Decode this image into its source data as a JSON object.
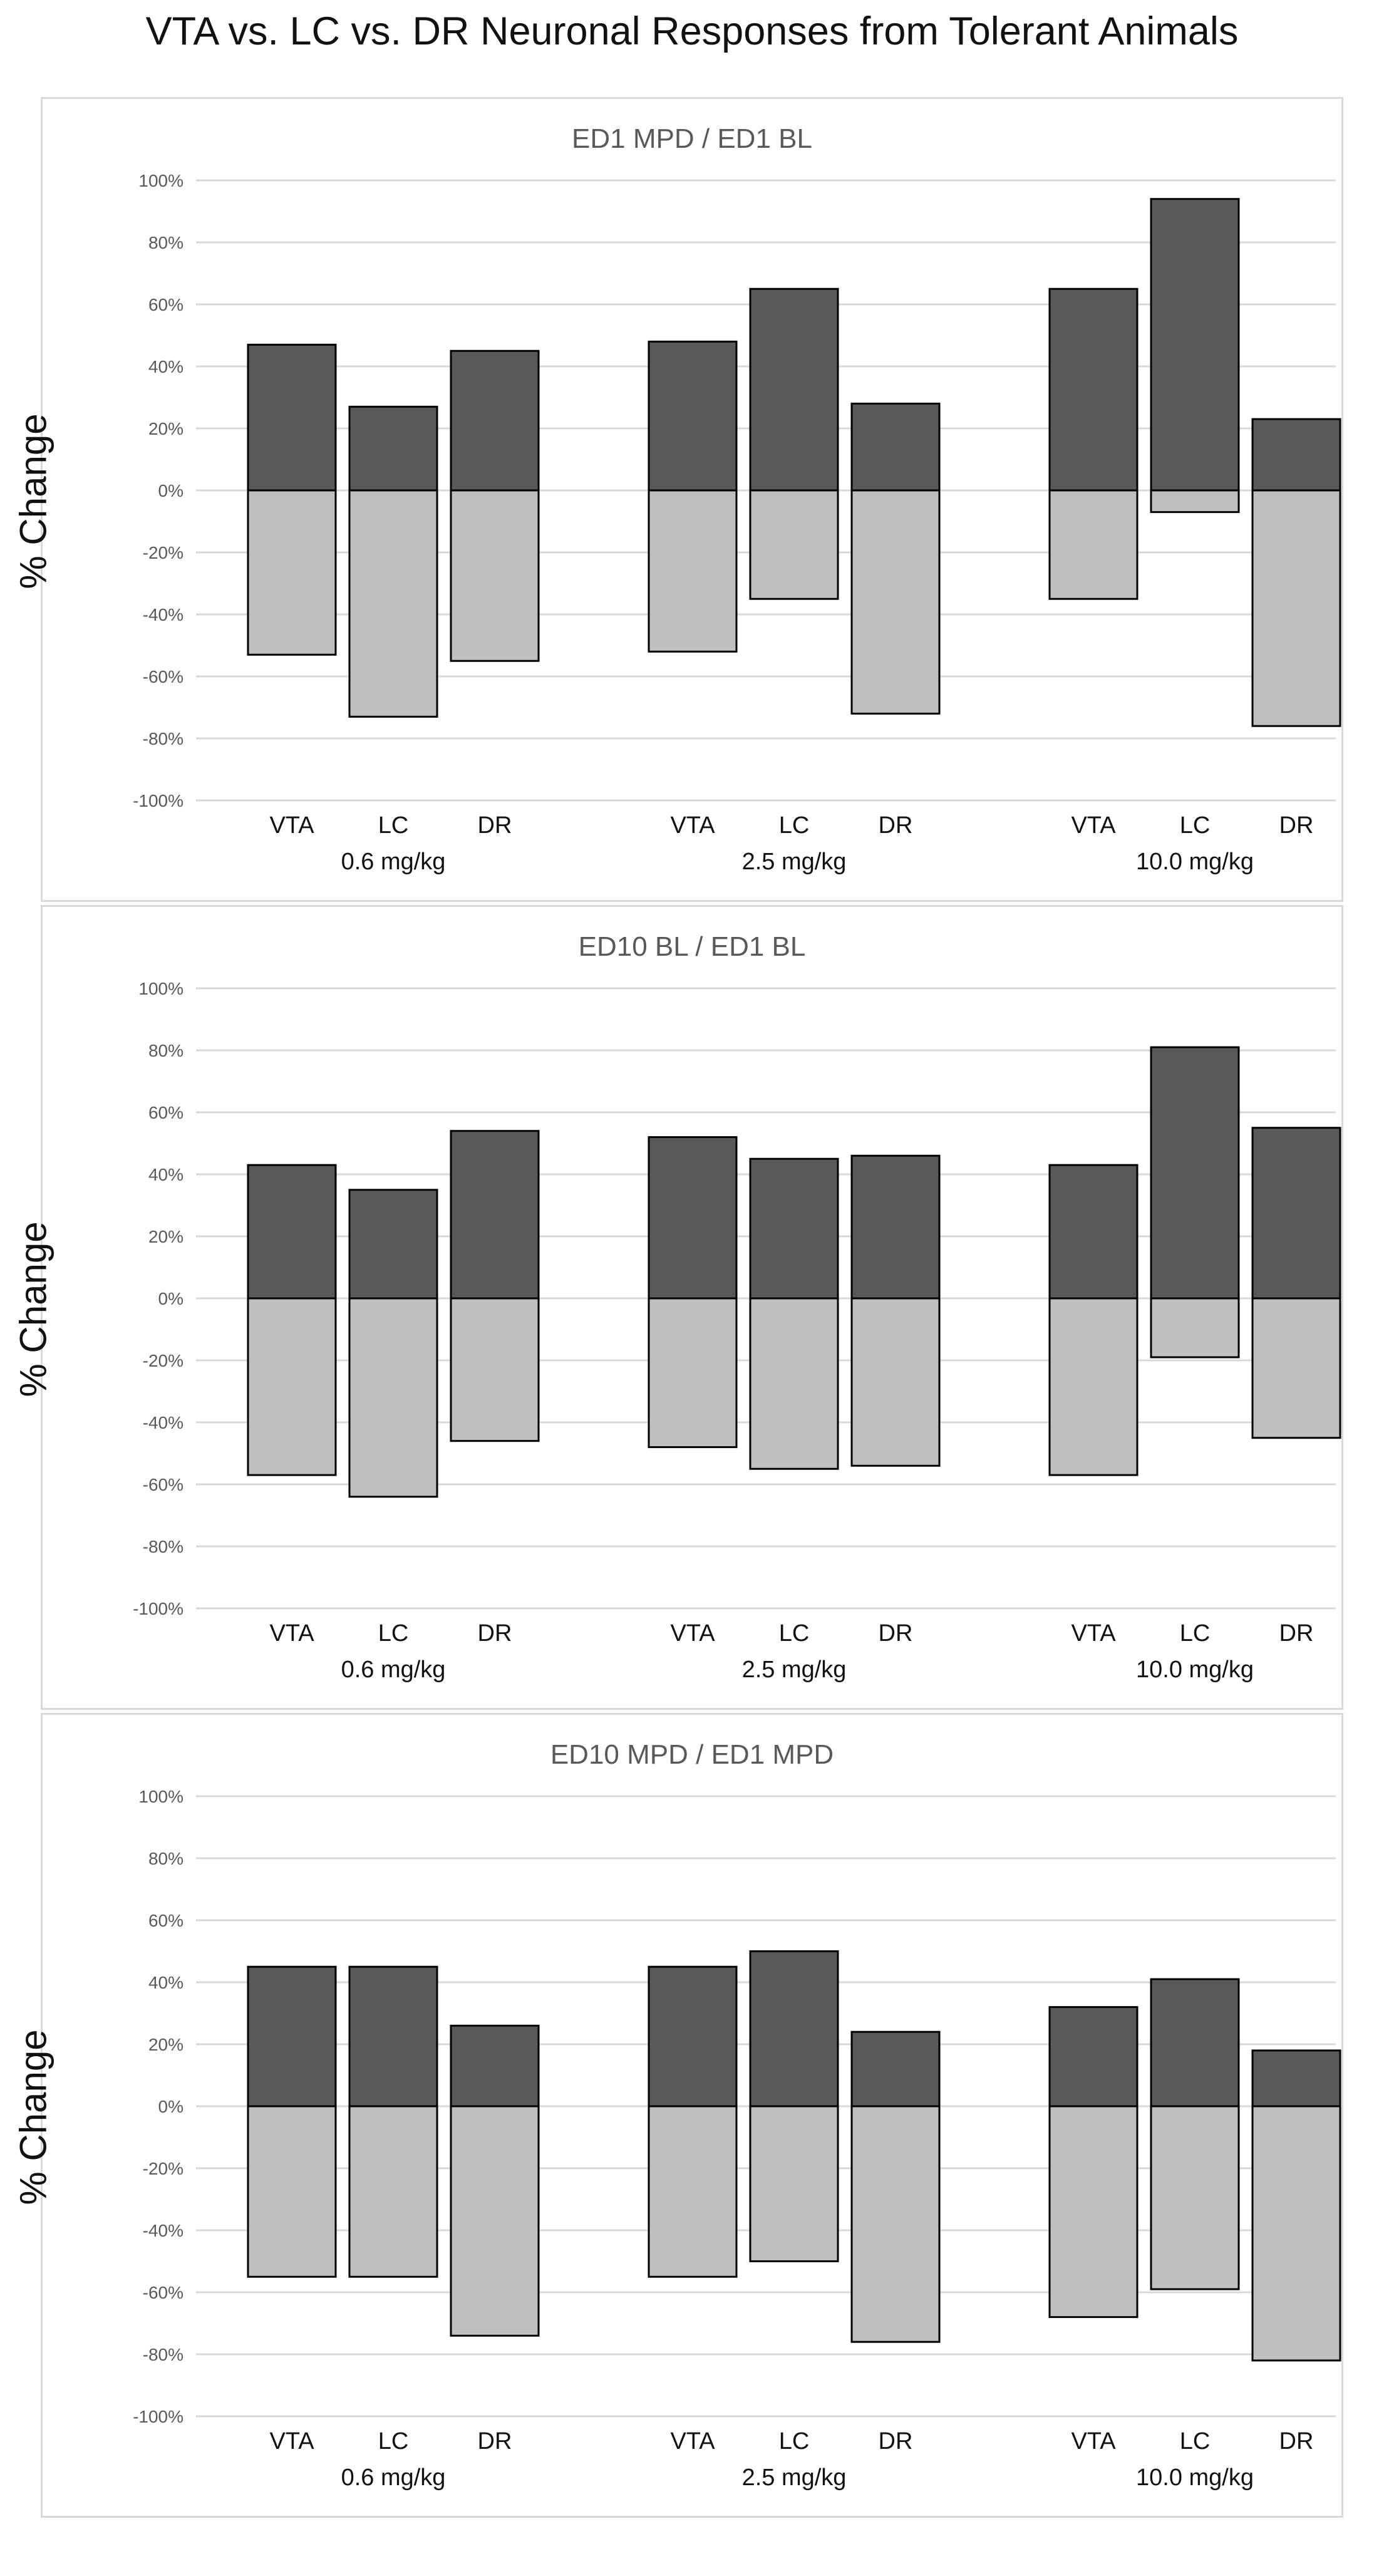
{
  "figure": {
    "title": "VTA vs. LC vs. DR Neuronal Responses from Tolerant Animals"
  },
  "colors": {
    "positive_bar": "#595959",
    "negative_bar": "#bfbfbf",
    "bar_outline": "#000000",
    "gridline": "#d9d9d9",
    "panel_border": "#d9d9d9"
  },
  "chart_data": [
    {
      "type": "bar",
      "title": "ED1 MPD / ED1 BL",
      "ylabel": "% Change",
      "xlabel": "",
      "ylim": [
        -100,
        100
      ],
      "yticks": [
        100,
        80,
        60,
        40,
        20,
        0,
        -20,
        -40,
        -60,
        -80,
        -100
      ],
      "ytick_labels": [
        "100%",
        "80%",
        "60%",
        "40%",
        "20%",
        "0%",
        "-20%",
        "-40%",
        "-60%",
        "-80%",
        "-100%"
      ],
      "grid": true,
      "stacked": true,
      "groups": [
        {
          "label": "0.6 mg/kg",
          "categories": [
            "VTA",
            "LC",
            "DR"
          ]
        },
        {
          "label": "2.5 mg/kg",
          "categories": [
            "VTA",
            "LC",
            "DR"
          ]
        },
        {
          "label": "10.0 mg/kg",
          "categories": [
            "VTA",
            "LC",
            "DR"
          ]
        }
      ],
      "series": [
        {
          "name": "increase",
          "values": [
            47,
            27,
            45,
            48,
            65,
            28,
            65,
            94,
            23
          ]
        },
        {
          "name": "decrease",
          "values": [
            -53,
            -73,
            -55,
            -52,
            -35,
            -72,
            -35,
            -7,
            -76
          ]
        }
      ]
    },
    {
      "type": "bar",
      "title": "ED10 BL / ED1 BL",
      "ylabel": "% Change",
      "xlabel": "",
      "ylim": [
        -100,
        100
      ],
      "yticks": [
        100,
        80,
        60,
        40,
        20,
        0,
        -20,
        -40,
        -60,
        -80,
        -100
      ],
      "ytick_labels": [
        "100%",
        "80%",
        "60%",
        "40%",
        "20%",
        "0%",
        "-20%",
        "-40%",
        "-60%",
        "-80%",
        "-100%"
      ],
      "grid": true,
      "stacked": true,
      "groups": [
        {
          "label": "0.6 mg/kg",
          "categories": [
            "VTA",
            "LC",
            "DR"
          ]
        },
        {
          "label": "2.5 mg/kg",
          "categories": [
            "VTA",
            "LC",
            "DR"
          ]
        },
        {
          "label": "10.0 mg/kg",
          "categories": [
            "VTA",
            "LC",
            "DR"
          ]
        }
      ],
      "series": [
        {
          "name": "increase",
          "values": [
            43,
            35,
            54,
            52,
            45,
            46,
            43,
            81,
            55
          ]
        },
        {
          "name": "decrease",
          "values": [
            -57,
            -64,
            -46,
            -48,
            -55,
            -54,
            -57,
            -19,
            -45
          ]
        }
      ]
    },
    {
      "type": "bar",
      "title": "ED10 MPD / ED1 MPD",
      "ylabel": "% Change",
      "xlabel": "",
      "ylim": [
        -100,
        100
      ],
      "yticks": [
        100,
        80,
        60,
        40,
        20,
        0,
        -20,
        -40,
        -60,
        -80,
        -100
      ],
      "ytick_labels": [
        "100%",
        "80%",
        "60%",
        "40%",
        "20%",
        "0%",
        "-20%",
        "-40%",
        "-60%",
        "-80%",
        "-100%"
      ],
      "grid": true,
      "stacked": true,
      "groups": [
        {
          "label": "0.6 mg/kg",
          "categories": [
            "VTA",
            "LC",
            "DR"
          ]
        },
        {
          "label": "2.5 mg/kg",
          "categories": [
            "VTA",
            "LC",
            "DR"
          ]
        },
        {
          "label": "10.0 mg/kg",
          "categories": [
            "VTA",
            "LC",
            "DR"
          ]
        }
      ],
      "series": [
        {
          "name": "increase",
          "values": [
            45,
            45,
            26,
            45,
            50,
            24,
            32,
            41,
            18
          ]
        },
        {
          "name": "decrease",
          "values": [
            -55,
            -55,
            -74,
            -55,
            -50,
            -76,
            -68,
            -59,
            -82
          ]
        }
      ]
    }
  ]
}
